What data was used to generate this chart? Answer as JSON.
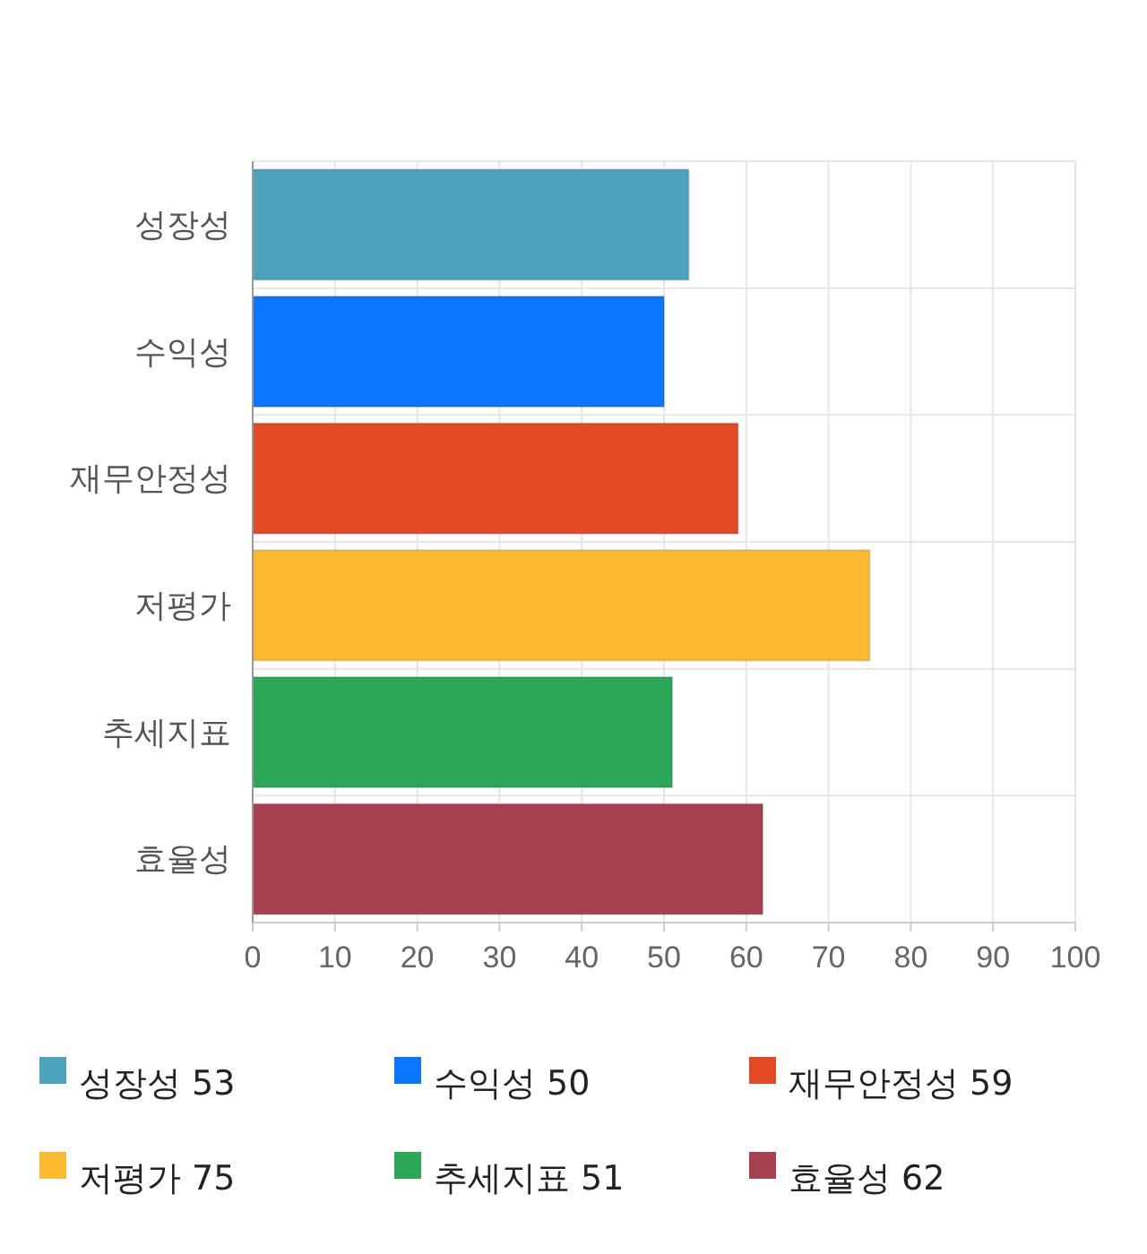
{
  "chart_data": {
    "type": "bar",
    "orientation": "horizontal",
    "stacked": true,
    "categories": [
      "성장성",
      "수익성",
      "재무안정성",
      "저평가",
      "추세지표",
      "효율성"
    ],
    "series": [
      {
        "name": "성장성 53",
        "color": "#4ba3bc",
        "values": [
          53,
          null,
          null,
          null,
          null,
          null
        ]
      },
      {
        "name": "수익성 50",
        "color": "#0a75ff",
        "values": [
          null,
          50,
          null,
          null,
          null,
          null
        ]
      },
      {
        "name": "재무안정성 59",
        "color": "#e24a26",
        "values": [
          null,
          null,
          59,
          null,
          null,
          null
        ]
      },
      {
        "name": "저평가 75",
        "color": "#feb932",
        "values": [
          null,
          null,
          null,
          75,
          null,
          null
        ]
      },
      {
        "name": "추세지표 51",
        "color": "#2aa857",
        "values": [
          null,
          null,
          null,
          null,
          51,
          null
        ]
      },
      {
        "name": "효율성 62",
        "color": "#a8414f",
        "values": [
          null,
          null,
          null,
          null,
          null,
          62
        ]
      }
    ],
    "xlim": [
      0,
      100
    ],
    "xticks": [
      0,
      10,
      20,
      30,
      40,
      50,
      60,
      70,
      80,
      90,
      100
    ],
    "grid": true,
    "legend": "bottom"
  }
}
